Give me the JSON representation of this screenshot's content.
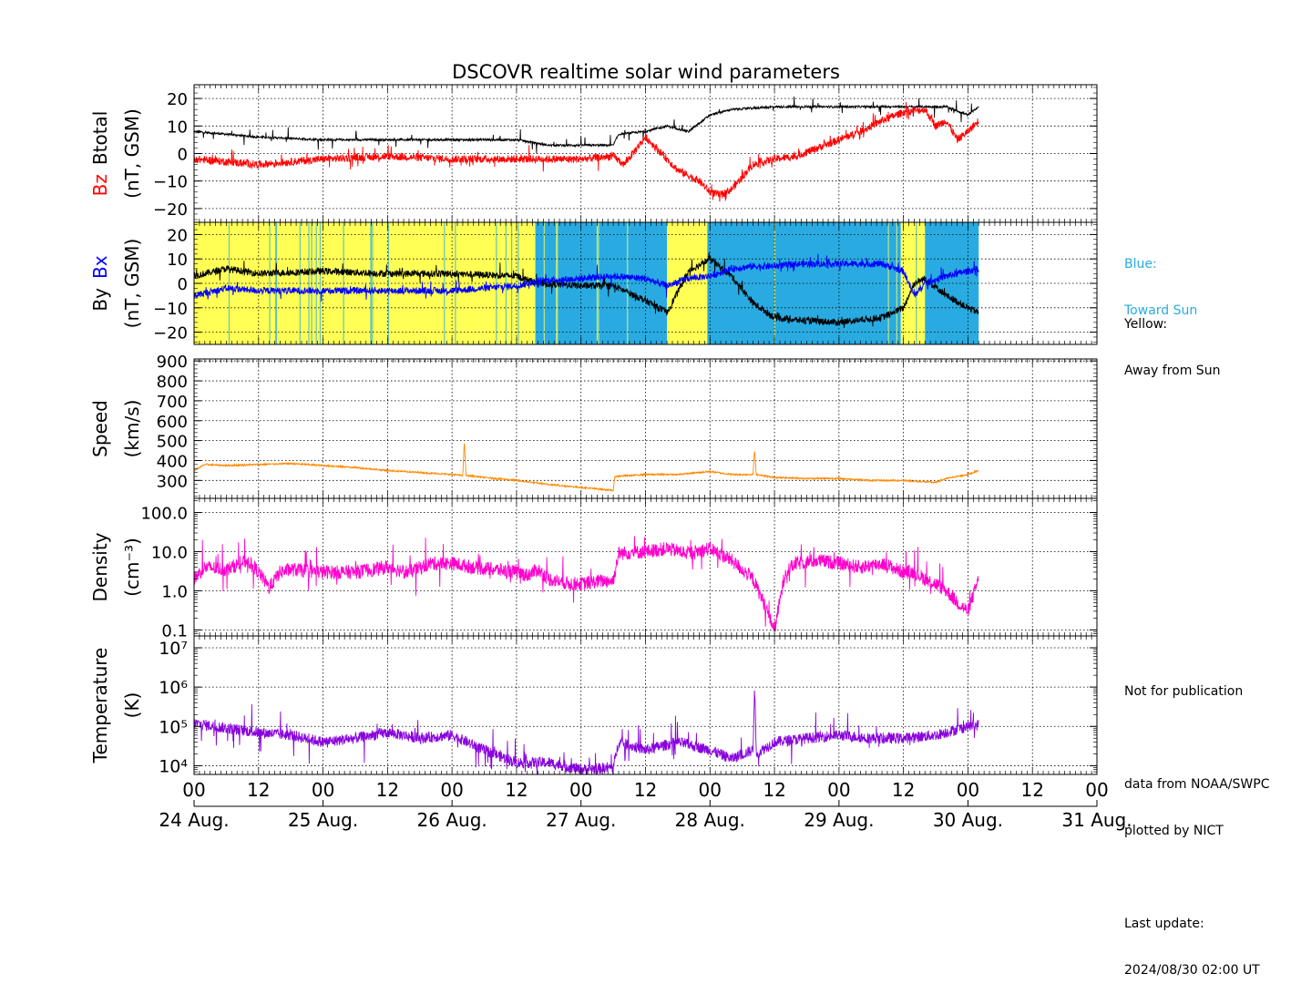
{
  "chart_data": {
    "type": "line",
    "title": "DSCOVR realtime solar wind parameters",
    "x_axis": {
      "unit": "hours since 24 Aug. 00 UT",
      "range": [
        0,
        168
      ],
      "hour_ticks": [
        "00",
        "12",
        "00",
        "12",
        "00",
        "12",
        "00",
        "12",
        "00",
        "12",
        "00",
        "12",
        "00",
        "12",
        "00"
      ],
      "date_ticks": [
        "24 Aug.",
        "25 Aug.",
        "26 Aug.",
        "27 Aug.",
        "28 Aug.",
        "29 Aug.",
        "30 Aug.",
        "31 Aug."
      ],
      "data_end": 146
    },
    "panels": [
      {
        "id": "btotal",
        "ylabel_parts": [
          {
            "text": "Bz",
            "color": "#ff0000"
          },
          {
            "text": "Btotal",
            "color": "#000000"
          }
        ],
        "ylabel_units": "(nT, GSM)",
        "ylim": [
          -25,
          25
        ],
        "scale": "linear",
        "ticks": [
          "20",
          "10",
          "0",
          "−10",
          "−20"
        ],
        "tick_values": [
          20,
          10,
          0,
          -10,
          -20
        ],
        "series": [
          {
            "name": "Btotal",
            "color": "#000000",
            "x": [
              0,
              6,
              12,
              24,
              36,
              48,
              60,
              66,
              72,
              78,
              79,
              84,
              88,
              92,
              96,
              100,
              108,
              120,
              132,
              140,
              144,
              146
            ],
            "y": [
              8,
              7,
              6,
              5,
              5,
              5,
              5,
              3,
              3,
              3,
              7,
              8,
              10,
              8,
              14,
              16,
              17,
              17,
              17,
              17,
              14,
              17
            ]
          },
          {
            "name": "Bz",
            "color": "#ff0000",
            "x": [
              0,
              6,
              12,
              24,
              36,
              48,
              60,
              66,
              72,
              78,
              80,
              84,
              88,
              90,
              94,
              96,
              98,
              100,
              104,
              108,
              112,
              116,
              120,
              124,
              128,
              132,
              136,
              138,
              140,
              142,
              144,
              146
            ],
            "y": [
              -2,
              -3,
              -4,
              -2,
              -1,
              -2,
              -2,
              -2,
              -2,
              -1,
              -4,
              6,
              -2,
              -6,
              -10,
              -14,
              -15,
              -13,
              -4,
              -2,
              -1,
              2,
              5,
              8,
              12,
              15,
              16,
              10,
              12,
              5,
              8,
              12
            ]
          }
        ]
      },
      {
        "id": "bxby",
        "ylabel_parts": [
          {
            "text": "By",
            "color": "#000000"
          },
          {
            "text": "Bx",
            "color": "#0000ff"
          }
        ],
        "ylabel_units": "(nT, GSM)",
        "ylim": [
          -25,
          25
        ],
        "scale": "linear",
        "ticks": [
          "20",
          "10",
          "0",
          "−10",
          "−20"
        ],
        "tick_values": [
          20,
          10,
          0,
          -10,
          -20
        ],
        "sector_colors": {
          "away": "#ffff55",
          "toward": "#29abe2"
        },
        "sectors": [
          {
            "from": 0,
            "to": 63.5,
            "side": "away"
          },
          {
            "from": 63.5,
            "to": 88,
            "side": "toward"
          },
          {
            "from": 88,
            "to": 95.5,
            "side": "away"
          },
          {
            "from": 95.5,
            "to": 131.5,
            "side": "toward"
          },
          {
            "from": 131.5,
            "to": 136,
            "side": "away"
          },
          {
            "from": 136,
            "to": 146,
            "side": "toward"
          }
        ],
        "series": [
          {
            "name": "By",
            "color": "#000000",
            "x": [
              0,
              6,
              12,
              24,
              36,
              48,
              60,
              64,
              72,
              78,
              84,
              88,
              92,
              96,
              100,
              104,
              108,
              112,
              120,
              128,
              132,
              134,
              136,
              140,
              144,
              146
            ],
            "y": [
              3,
              6,
              4,
              5,
              4,
              4,
              3,
              0,
              -1,
              -1,
              -7,
              -12,
              5,
              10,
              3,
              -8,
              -14,
              -15,
              -16,
              -14,
              -10,
              0,
              2,
              -5,
              -10,
              -12
            ]
          },
          {
            "name": "Bx",
            "color": "#0000ff",
            "x": [
              0,
              6,
              12,
              24,
              36,
              48,
              60,
              64,
              72,
              78,
              84,
              88,
              92,
              96,
              100,
              104,
              108,
              112,
              120,
              128,
              132,
              134,
              136,
              140,
              144,
              146
            ],
            "y": [
              -5,
              -2,
              -3,
              -3,
              -3,
              -3,
              -1,
              1,
              2,
              3,
              2,
              -1,
              2,
              3,
              6,
              7,
              7,
              8,
              8,
              8,
              5,
              -5,
              0,
              3,
              5,
              6
            ]
          }
        ]
      },
      {
        "id": "speed",
        "ylabel_parts": [
          {
            "text": "Speed",
            "color": "#000000"
          }
        ],
        "ylabel_units": "(km/s)",
        "ylim": [
          210,
          910
        ],
        "scale": "linear",
        "ticks": [
          "900",
          "800",
          "700",
          "600",
          "500",
          "400",
          "300"
        ],
        "tick_values": [
          900,
          800,
          700,
          600,
          500,
          400,
          300
        ],
        "series": [
          {
            "name": "Speed",
            "color": "#ff8800",
            "x": [
              0,
              2,
              6,
              12,
              18,
              24,
              30,
              36,
              42,
              48,
              50,
              50.3,
              50.6,
              54,
              60,
              66,
              72,
              78,
              78.3,
              84,
              90,
              96,
              100,
              104,
              104.3,
              104.6,
              108,
              114,
              120,
              126,
              132,
              138,
              140,
              144,
              146
            ],
            "y": [
              350,
              380,
              375,
              380,
              385,
              375,
              365,
              350,
              340,
              330,
              325,
              500,
              325,
              315,
              300,
              280,
              265,
              250,
              320,
              330,
              330,
              345,
              330,
              330,
              455,
              330,
              315,
              310,
              310,
              300,
              300,
              290,
              310,
              330,
              350
            ]
          }
        ]
      },
      {
        "id": "density",
        "ylabel_parts": [
          {
            "text": "Density",
            "color": "#000000"
          }
        ],
        "ylabel_units": "(cm⁻³)",
        "ylim": [
          0.07,
          230
        ],
        "scale": "log",
        "ticks": [
          "100.0",
          "10.0",
          "1.0",
          "0.1"
        ],
        "tick_values": [
          100,
          10,
          1,
          0.1
        ],
        "series": [
          {
            "name": "Density",
            "color": "#ff00cc",
            "x": [
              0,
              2,
              6,
              10,
              12,
              14,
              16,
              18,
              24,
              30,
              36,
              40,
              44,
              48,
              52,
              56,
              60,
              62,
              64,
              66,
              70,
              72,
              76,
              78,
              79,
              84,
              88,
              92,
              96,
              100,
              104,
              106,
              108,
              110,
              112,
              116,
              120,
              124,
              128,
              132,
              134,
              136,
              138,
              140,
              142,
              144,
              146
            ],
            "y": [
              2,
              4,
              3.5,
              6,
              3,
              1.2,
              3,
              3.5,
              3,
              3,
              4,
              3,
              5,
              5,
              4,
              3.5,
              3,
              2.5,
              3.5,
              2,
              1.5,
              1.5,
              1.8,
              1.8,
              9,
              10,
              12,
              9,
              12,
              6,
              2,
              0.5,
              0.1,
              3,
              5,
              6,
              5,
              4,
              5,
              3,
              3,
              2,
              1.5,
              1,
              0.5,
              0.3,
              2
            ]
          }
        ]
      },
      {
        "id": "temperature",
        "ylabel_parts": [
          {
            "text": "Temperature",
            "color": "#000000"
          }
        ],
        "ylabel_units": "(K)",
        "ylim": [
          6000,
          20000000
        ],
        "scale": "log",
        "ticks": [
          "10⁷",
          "10⁶",
          "10⁵",
          "10⁴"
        ],
        "tick_values": [
          10000000,
          1000000,
          100000,
          10000
        ],
        "series": [
          {
            "name": "Temperature",
            "color": "#8800dd",
            "x": [
              0,
              6,
              12,
              18,
              24,
              30,
              36,
              42,
              48,
              54,
              60,
              66,
              72,
              78,
              79,
              84,
              90,
              96,
              100,
              104,
              104.3,
              104.6,
              108,
              114,
              120,
              126,
              132,
              138,
              144,
              146
            ],
            "y": [
              120000,
              90000,
              70000,
              60000,
              40000,
              50000,
              70000,
              50000,
              60000,
              25000,
              12000,
              12000,
              8000,
              9000,
              40000,
              25000,
              40000,
              25000,
              15000,
              25000,
              1300000,
              20000,
              40000,
              50000,
              60000,
              50000,
              50000,
              60000,
              100000,
              110000
            ]
          }
        ]
      }
    ]
  },
  "legend_notes": {
    "blue_title": "Blue:",
    "blue_text": "Toward Sun",
    "yellow_title": "Yellow:",
    "yellow_text": "Away from Sun"
  },
  "footer_notes": {
    "line1": "Not for publication",
    "line2": "data from NOAA/SWPC",
    "line3": "plotted by NICT",
    "line4": "Last update:",
    "line5": "2024/08/30 02:00 UT"
  }
}
